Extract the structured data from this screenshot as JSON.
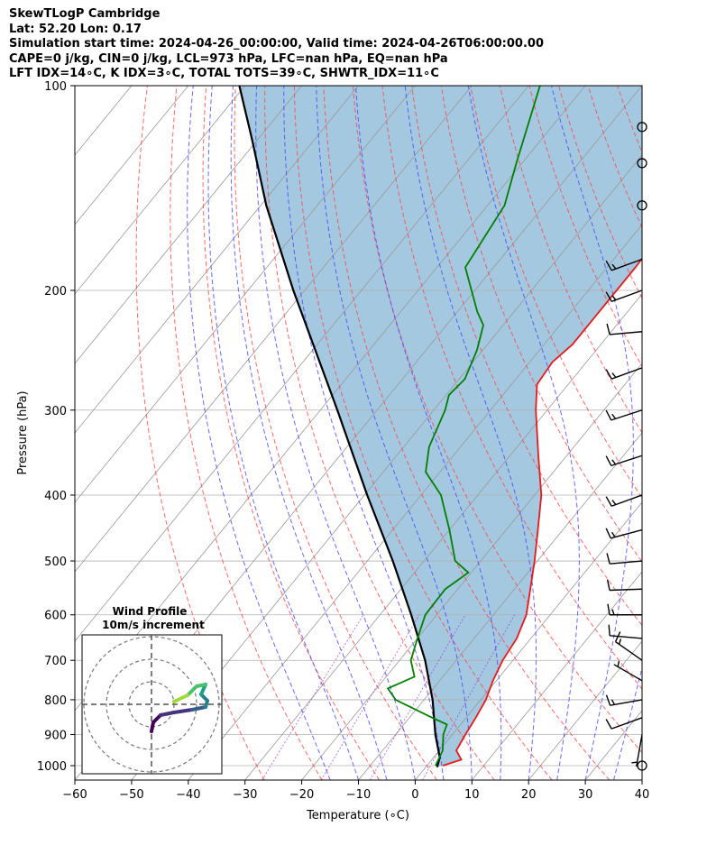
{
  "header": {
    "line1": "SkewTLogP Cambridge",
    "line2": "Lat: 52.20   Lon: 0.17",
    "line3": "Simulation start time: 2024-04-26_00:00:00, Valid time: 2024-04-26T06:00:00.00",
    "line4": "CAPE=0 j/kg, CIN=0 j/kg, LCL=973 hPa, LFC=nan hPa, EQ=nan hPa",
    "line5": "LFT IDX=14∘C, K IDX=3∘C, TOTAL TOTS=39∘C, SHWTR_IDX=11∘C"
  },
  "hodograph": {
    "title": "Wind Profile",
    "subtitle": "10m/s increment"
  },
  "colors": {
    "temperature": "#e41a1c",
    "dewpoint": "#008000",
    "parcel": "#000000",
    "shade": "#a4c8e0",
    "dry_adiabat": "#ff4444",
    "moist_adiabat": "#4444ff",
    "isotherm": "#999999",
    "mixing_ratio": "#9933cc"
  },
  "chart_data": {
    "type": "skewt",
    "xlabel": "Temperature (∘C)",
    "ylabel": "Pressure (hPa)",
    "xlim": [
      -60,
      40
    ],
    "ylim": [
      1050,
      100
    ],
    "x_ticks": [
      -60,
      -50,
      -40,
      -30,
      -20,
      -10,
      0,
      10,
      20,
      30,
      40
    ],
    "y_ticks": [
      1000,
      900,
      800,
      700,
      600,
      500,
      400,
      300,
      200,
      100
    ],
    "temperature": [
      {
        "p": 1000,
        "t": 2.8
      },
      {
        "p": 980,
        "t": 5.2
      },
      {
        "p": 950,
        "t": 3.0
      },
      {
        "p": 900,
        "t": 2.3
      },
      {
        "p": 850,
        "t": 1.7
      },
      {
        "p": 800,
        "t": 0.9
      },
      {
        "p": 750,
        "t": -0.6
      },
      {
        "p": 700,
        "t": -1.8
      },
      {
        "p": 650,
        "t": -2.5
      },
      {
        "p": 600,
        "t": -4.2
      },
      {
        "p": 550,
        "t": -7.2
      },
      {
        "p": 500,
        "t": -10.5
      },
      {
        "p": 450,
        "t": -14.4
      },
      {
        "p": 400,
        "t": -18.8
      },
      {
        "p": 350,
        "t": -25.0
      },
      {
        "p": 300,
        "t": -32.0
      },
      {
        "p": 275,
        "t": -35.5
      },
      {
        "p": 255,
        "t": -36.0
      },
      {
        "p": 240,
        "t": -35.0
      },
      {
        "p": 220,
        "t": -35.0
      },
      {
        "p": 200,
        "t": -35.0
      },
      {
        "p": 185,
        "t": -35.0
      },
      {
        "p": 160,
        "t": -35.5
      },
      {
        "p": 140,
        "t": -36.0
      },
      {
        "p": 120,
        "t": -37.2
      },
      {
        "p": 100,
        "t": -39.0
      }
    ],
    "dewpoint": [
      {
        "p": 1000,
        "t": 1.5
      },
      {
        "p": 950,
        "t": 0.6
      },
      {
        "p": 900,
        "t": -1.6
      },
      {
        "p": 870,
        "t": -2.4
      },
      {
        "p": 850,
        "t": -6.0
      },
      {
        "p": 800,
        "t": -15.0
      },
      {
        "p": 770,
        "t": -18.0
      },
      {
        "p": 740,
        "t": -15.0
      },
      {
        "p": 700,
        "t": -18.0
      },
      {
        "p": 650,
        "t": -20.0
      },
      {
        "p": 600,
        "t": -22.0
      },
      {
        "p": 550,
        "t": -22.2
      },
      {
        "p": 520,
        "t": -20.5
      },
      {
        "p": 500,
        "t": -24.5
      },
      {
        "p": 450,
        "t": -30.0
      },
      {
        "p": 400,
        "t": -36.5
      },
      {
        "p": 370,
        "t": -42.5
      },
      {
        "p": 340,
        "t": -45.5
      },
      {
        "p": 300,
        "t": -48.0
      },
      {
        "p": 285,
        "t": -49.5
      },
      {
        "p": 270,
        "t": -49.0
      },
      {
        "p": 245,
        "t": -51.0
      },
      {
        "p": 225,
        "t": -53.5
      },
      {
        "p": 215,
        "t": -56.5
      },
      {
        "p": 185,
        "t": -65.0
      },
      {
        "p": 150,
        "t": -67.0
      },
      {
        "p": 130,
        "t": -71.0
      },
      {
        "p": 100,
        "t": -78.0
      }
    ],
    "parcel": [
      {
        "p": 1005,
        "t": 2.0
      },
      {
        "p": 973,
        "t": 1.1
      },
      {
        "p": 900,
        "t": -3.0
      },
      {
        "p": 800,
        "t": -8.5
      },
      {
        "p": 700,
        "t": -15.5
      },
      {
        "p": 600,
        "t": -24.5
      },
      {
        "p": 500,
        "t": -35.5
      },
      {
        "p": 400,
        "t": -49.5
      },
      {
        "p": 300,
        "t": -67.0
      },
      {
        "p": 200,
        "t": -92.0
      },
      {
        "p": 150,
        "t": -109.0
      },
      {
        "p": 120,
        "t": -121.0
      },
      {
        "p": 100,
        "t": -131.0
      }
    ],
    "wind_barbs": [
      {
        "p": 1000,
        "speed_kt": 0,
        "dir": 0
      },
      {
        "p": 900,
        "speed_kt": 5,
        "dir": 190
      },
      {
        "p": 850,
        "speed_kt": 10,
        "dir": 250
      },
      {
        "p": 800,
        "speed_kt": 15,
        "dir": 260
      },
      {
        "p": 750,
        "speed_kt": 5,
        "dir": 300
      },
      {
        "p": 700,
        "speed_kt": 15,
        "dir": 305
      },
      {
        "p": 650,
        "speed_kt": 10,
        "dir": 275
      },
      {
        "p": 600,
        "speed_kt": 15,
        "dir": 270
      },
      {
        "p": 550,
        "speed_kt": 10,
        "dir": 268
      },
      {
        "p": 500,
        "speed_kt": 10,
        "dir": 265
      },
      {
        "p": 450,
        "speed_kt": 15,
        "dir": 255
      },
      {
        "p": 400,
        "speed_kt": 15,
        "dir": 250
      },
      {
        "p": 350,
        "speed_kt": 15,
        "dir": 252
      },
      {
        "p": 300,
        "speed_kt": 15,
        "dir": 252
      },
      {
        "p": 260,
        "speed_kt": 15,
        "dir": 250
      },
      {
        "p": 230,
        "speed_kt": 10,
        "dir": 265
      },
      {
        "p": 200,
        "speed_kt": 15,
        "dir": 250
      },
      {
        "p": 180,
        "speed_kt": 15,
        "dir": 250
      },
      {
        "p": 150,
        "speed_kt": 0,
        "dir": 0
      },
      {
        "p": 130,
        "speed_kt": 0,
        "dir": 0
      },
      {
        "p": 115,
        "speed_kt": 0,
        "dir": 0
      }
    ],
    "hodograph_track": [
      {
        "u": 0.0,
        "v": -3.0
      },
      {
        "u": 0.2,
        "v": -2.0
      },
      {
        "u": 1.0,
        "v": -1.2
      },
      {
        "u": 2.5,
        "v": -0.9
      },
      {
        "u": 4.5,
        "v": -0.6
      },
      {
        "u": 6.0,
        "v": -0.3
      },
      {
        "u": 6.2,
        "v": 0.4
      },
      {
        "u": 5.5,
        "v": 1.1
      },
      {
        "u": 6.0,
        "v": 2.2
      },
      {
        "u": 5.0,
        "v": 2.0
      },
      {
        "u": 4.0,
        "v": 1.0
      },
      {
        "u": 2.5,
        "v": 0.3
      }
    ]
  }
}
